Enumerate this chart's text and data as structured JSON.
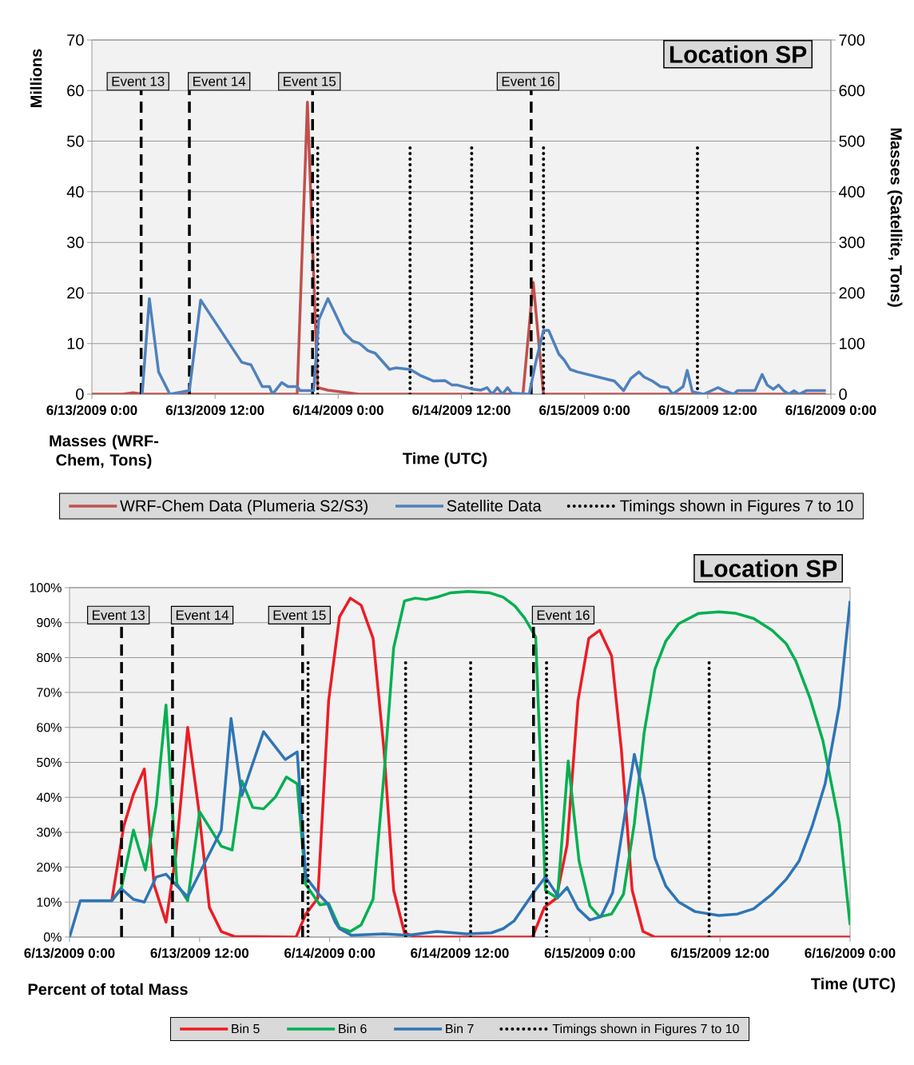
{
  "chart_data": [
    {
      "type": "line",
      "title": "Location SP",
      "xlabel": "Time (UTC)",
      "ylabel": "Masses (WRF-Chem, Tons)",
      "y2label": "Masses (Satellite, Tons)",
      "annotations": [
        "Millions"
      ],
      "xlim": [
        "2009-06-13T00:00",
        "2009-06-16T00:00"
      ],
      "xticks": [
        {
          "value": "2009-06-13T00:00",
          "label": "6/13/2009 0:00"
        },
        {
          "value": "2009-06-13T12:00",
          "label": "6/13/2009 12:00"
        },
        {
          "value": "2009-06-14T00:00",
          "label": "6/14/2009 0:00"
        },
        {
          "value": "2009-06-14T12:00",
          "label": "6/14/2009 12:00"
        },
        {
          "value": "2009-06-15T00:00",
          "label": "6/15/2009 0:00"
        },
        {
          "value": "2009-06-15T12:00",
          "label": "6/15/2009 12:00"
        },
        {
          "value": "2009-06-16T00:00",
          "label": "6/16/2009 0:00"
        }
      ],
      "ylim": [
        0,
        70
      ],
      "yticks": [
        0,
        10,
        20,
        30,
        40,
        50,
        60,
        70
      ],
      "y2lim": [
        0,
        700
      ],
      "y2ticks": [
        0,
        100,
        200,
        300,
        400,
        500,
        600,
        700
      ],
      "grid": "y",
      "legend": "bottom",
      "ref_lines": [
        {
          "axis": "x",
          "value": "2009-06-13T04:48",
          "label": "Event 13",
          "line_style": "dashed"
        },
        {
          "axis": "x",
          "value": "2009-06-13T09:30",
          "label": "Event 14",
          "line_style": "dashed"
        },
        {
          "axis": "x",
          "value": "2009-06-13T21:30",
          "label": "Event 15",
          "line_style": "dashed"
        },
        {
          "axis": "x",
          "value": "2009-06-14T18:48",
          "label": "Event 16",
          "line_style": "dashed"
        }
      ],
      "series": [
        {
          "name": "WRF-Chem Data (Plumeria S2/S3)",
          "color": "#c0504d",
          "x": [
            "2009-06-13T00:00",
            "2009-06-13T03:00",
            "2009-06-13T04:00",
            "2009-06-13T05:00",
            "2009-06-13T20:00",
            "2009-06-13T21:00",
            "2009-06-13T22:00",
            "2009-06-13T23:00",
            "2009-06-14T02:00",
            "2009-06-14T18:00",
            "2009-06-14T19:00",
            "2009-06-14T20:00",
            "2009-06-15T23:30"
          ],
          "values": [
            0,
            0,
            0.3,
            0,
            0,
            57.7,
            1.3,
            0.8,
            0,
            0,
            22.1,
            0,
            0
          ]
        },
        {
          "name": "Satellite Data",
          "color": "#4f81bd",
          "axis": "y2",
          "x": [
            "2009-06-13T04:54",
            "2009-06-13T05:36",
            "2009-06-13T06:30",
            "2009-06-13T07:36",
            "2009-06-13T09:30",
            "2009-06-13T10:36",
            "2009-06-13T14:36",
            "2009-06-13T15:30",
            "2009-06-13T16:36",
            "2009-06-13T17:18",
            "2009-06-13T17:36",
            "2009-06-13T18:30",
            "2009-06-13T19:06",
            "2009-06-13T20:00",
            "2009-06-13T20:18",
            "2009-06-13T21:36",
            "2009-06-13T22:06",
            "2009-06-13T23:00",
            "2009-06-13T23:36",
            "2009-06-14T00:36",
            "2009-06-14T01:24",
            "2009-06-14T02:06",
            "2009-06-14T02:54",
            "2009-06-14T03:36",
            "2009-06-14T05:00",
            "2009-06-14T05:36",
            "2009-06-14T07:00",
            "2009-06-14T08:06",
            "2009-06-14T09:18",
            "2009-06-14T10:24",
            "2009-06-14T11:06",
            "2009-06-14T11:36",
            "2009-06-14T13:06",
            "2009-06-14T13:54",
            "2009-06-14T14:30",
            "2009-06-14T15:00",
            "2009-06-14T15:30",
            "2009-06-14T16:00",
            "2009-06-14T16:30",
            "2009-06-14T16:54",
            "2009-06-14T18:36",
            "2009-06-14T19:18",
            "2009-06-14T20:00",
            "2009-06-14T20:30",
            "2009-06-14T21:30",
            "2009-06-14T22:00",
            "2009-06-14T22:36",
            "2009-06-14T23:18",
            "2009-06-15T02:54",
            "2009-06-15T03:48",
            "2009-06-15T04:30",
            "2009-06-15T05:18",
            "2009-06-15T05:48",
            "2009-06-15T06:36",
            "2009-06-15T07:24",
            "2009-06-15T08:06",
            "2009-06-15T08:36",
            "2009-06-15T09:36",
            "2009-06-15T10:00",
            "2009-06-15T10:30",
            "2009-06-15T11:36",
            "2009-06-15T13:00",
            "2009-06-15T13:36",
            "2009-06-15T14:30",
            "2009-06-15T14:54",
            "2009-06-15T16:36",
            "2009-06-15T17:18",
            "2009-06-15T17:48",
            "2009-06-15T18:24",
            "2009-06-15T18:54",
            "2009-06-15T19:24",
            "2009-06-15T19:54",
            "2009-06-15T20:24",
            "2009-06-15T20:54",
            "2009-06-15T21:36",
            "2009-06-15T23:30"
          ],
          "values": [
            0,
            189,
            44,
            0,
            7,
            186,
            63,
            58,
            15,
            15,
            0,
            23,
            15,
            15,
            7,
            7,
            147,
            189,
            164,
            121,
            105,
            100,
            86,
            81,
            49,
            52,
            49,
            36,
            26,
            27,
            18,
            18,
            10,
            8,
            13,
            0,
            13,
            0,
            13,
            2,
            0,
            68,
            126,
            126,
            79,
            68,
            49,
            44,
            26,
            7,
            31,
            44,
            34,
            26,
            15,
            13,
            0,
            15,
            47,
            5,
            0,
            13,
            7,
            0,
            7,
            7,
            39,
            18,
            10,
            18,
            7,
            0,
            7,
            0,
            7,
            7
          ]
        },
        {
          "name": "Timings shown in Figures 7 to 10",
          "color": "#000000",
          "line_style": "dotted",
          "x": [
            "2009-06-13T22:00",
            "2009-06-13T22:00",
            null,
            "2009-06-14T07:00",
            "2009-06-14T07:00",
            null,
            "2009-06-14T13:00",
            "2009-06-14T13:00",
            null,
            "2009-06-14T20:00",
            "2009-06-14T20:00",
            null,
            "2009-06-15T11:00",
            "2009-06-15T11:00"
          ],
          "values": [
            0,
            49,
            null,
            0,
            49,
            null,
            0,
            49,
            null,
            0,
            49,
            null,
            0,
            49
          ]
        }
      ]
    },
    {
      "type": "line",
      "title": "Location SP",
      "xlabel": "Time (UTC)",
      "ylabel": "Percent of total Mass",
      "xlim": [
        "2009-06-13T00:00",
        "2009-06-16T00:00"
      ],
      "xticks": [
        {
          "value": "2009-06-13T00:00",
          "label": "6/13/2009 0:00"
        },
        {
          "value": "2009-06-13T12:00",
          "label": "6/13/2009 12:00"
        },
        {
          "value": "2009-06-14T00:00",
          "label": "6/14/2009 0:00"
        },
        {
          "value": "2009-06-14T12:00",
          "label": "6/14/2009 12:00"
        },
        {
          "value": "2009-06-15T00:00",
          "label": "6/15/2009 0:00"
        },
        {
          "value": "2009-06-15T12:00",
          "label": "6/15/2009 12:00"
        },
        {
          "value": "2009-06-16T00:00",
          "label": "6/16/2009 0:00"
        }
      ],
      "ylim": [
        0,
        100
      ],
      "yticks": [
        {
          "value": 0,
          "label": "0%"
        },
        {
          "value": 10,
          "label": "10%"
        },
        {
          "value": 20,
          "label": "20%"
        },
        {
          "value": 30,
          "label": "30%"
        },
        {
          "value": 40,
          "label": "40%"
        },
        {
          "value": 50,
          "label": "50%"
        },
        {
          "value": 60,
          "label": "60%"
        },
        {
          "value": 70,
          "label": "70%"
        },
        {
          "value": 80,
          "label": "80%"
        },
        {
          "value": 90,
          "label": "90%"
        },
        {
          "value": 100,
          "label": "100%"
        }
      ],
      "grid": "y",
      "legend": "bottom",
      "ref_lines": [
        {
          "axis": "x",
          "value": "2009-06-13T04:48",
          "label": "Event 13",
          "line_style": "dashed"
        },
        {
          "axis": "x",
          "value": "2009-06-13T09:30",
          "label": "Event 14",
          "line_style": "dashed"
        },
        {
          "axis": "x",
          "value": "2009-06-13T21:30",
          "label": "Event 15",
          "line_style": "dashed"
        },
        {
          "axis": "x",
          "value": "2009-06-14T18:48",
          "label": "Event 16",
          "line_style": "dashed"
        }
      ],
      "series": [
        {
          "name": "Bin 5",
          "color": "#ed1c24",
          "x": [
            "2009-06-13T03:54",
            "2009-06-13T05:00",
            "2009-06-13T05:54",
            "2009-06-13T06:54",
            "2009-06-13T07:48",
            "2009-06-13T08:54",
            "2009-06-13T09:48",
            "2009-06-13T10:54",
            "2009-06-13T11:54",
            "2009-06-13T12:54",
            "2009-06-13T14:00",
            "2009-06-13T15:12",
            "2009-06-13T20:54",
            "2009-06-13T21:48",
            "2009-06-13T22:54",
            "2009-06-13T23:54",
            "2009-06-14T00:54",
            "2009-06-14T01:54",
            "2009-06-14T02:54",
            "2009-06-14T04:00",
            "2009-06-14T05:00",
            "2009-06-14T05:54",
            "2009-06-14T06:54",
            "2009-06-14T07:54",
            "2009-06-14T18:42",
            "2009-06-14T19:48",
            "2009-06-14T20:54",
            "2009-06-14T21:54",
            "2009-06-14T22:54",
            "2009-06-14T23:54",
            "2009-06-15T00:54",
            "2009-06-15T02:00",
            "2009-06-15T02:54",
            "2009-06-15T03:54",
            "2009-06-15T04:54",
            "2009-06-15T06:00",
            "2009-06-16T00:00"
          ],
          "values": [
            10.4,
            31.7,
            40.9,
            48.1,
            15,
            4.3,
            23.3,
            60,
            37,
            8.5,
            1.6,
            0.2,
            0,
            6.6,
            11.1,
            67.6,
            91.6,
            97,
            95,
            85.5,
            53.8,
            13.4,
            1.2,
            0,
            0,
            8.5,
            11.1,
            26.4,
            67.6,
            85.5,
            87.8,
            80.5,
            53.8,
            13.4,
            1.6,
            0,
            0
          ]
        },
        {
          "name": "Bin 6",
          "color": "#00b050",
          "x": [
            "2009-06-13T03:54",
            "2009-06-13T04:48",
            "2009-06-13T05:54",
            "2009-06-13T07:00",
            "2009-06-13T08:00",
            "2009-06-13T08:54",
            "2009-06-13T09:54",
            "2009-06-13T10:54",
            "2009-06-13T12:00",
            "2009-06-13T14:00",
            "2009-06-13T15:00",
            "2009-06-13T15:54",
            "2009-06-13T16:54",
            "2009-06-13T17:54",
            "2009-06-13T19:00",
            "2009-06-13T20:00",
            "2009-06-13T21:00",
            "2009-06-13T21:48",
            "2009-06-13T23:06",
            "2009-06-13T23:54",
            "2009-06-14T00:54",
            "2009-06-14T01:54",
            "2009-06-14T02:54",
            "2009-06-14T04:00",
            "2009-06-14T05:00",
            "2009-06-14T05:54",
            "2009-06-14T06:54",
            "2009-06-14T07:54",
            "2009-06-14T08:54",
            "2009-06-14T09:54",
            "2009-06-14T11:06",
            "2009-06-14T12:48",
            "2009-06-14T14:48",
            "2009-06-14T16:00",
            "2009-06-14T17:06",
            "2009-06-14T18:00",
            "2009-06-14T19:00",
            "2009-06-14T19:54",
            "2009-06-14T21:00",
            "2009-06-14T22:00",
            "2009-06-14T23:00",
            "2009-06-15T00:00",
            "2009-06-15T00:54",
            "2009-06-15T02:00",
            "2009-06-15T03:06",
            "2009-06-15T04:06",
            "2009-06-15T05:00",
            "2009-06-15T06:00",
            "2009-06-15T07:00",
            "2009-06-15T08:12",
            "2009-06-15T10:00",
            "2009-06-15T11:54",
            "2009-06-15T13:24",
            "2009-06-15T15:06",
            "2009-06-15T16:48",
            "2009-06-15T18:06",
            "2009-06-15T19:00",
            "2009-06-15T20:18",
            "2009-06-15T21:30",
            "2009-06-15T23:00",
            "2009-06-16T00:00"
          ],
          "values": [
            10.4,
            14.2,
            30.6,
            19.2,
            37.8,
            66.4,
            15.3,
            10.4,
            35.9,
            26,
            24.9,
            44.7,
            37.1,
            36.7,
            40.1,
            45.8,
            43.9,
            15,
            9.2,
            9.6,
            2.7,
            1.6,
            3.5,
            10.8,
            46.2,
            82.8,
            96.2,
            97,
            96.6,
            97.3,
            98.5,
            98.9,
            98.5,
            97.3,
            94.7,
            91.2,
            85.9,
            13.4,
            11.1,
            50.4,
            21.8,
            8.9,
            5.8,
            6.6,
            12.3,
            32.5,
            58.4,
            76.7,
            84.7,
            89.7,
            92.6,
            93.1,
            92.7,
            91.2,
            87.8,
            84,
            79,
            68.4,
            56.1,
            32.5,
            3.5
          ]
        },
        {
          "name": "Bin 7",
          "color": "#2e75b6",
          "x": [
            "2009-06-13T00:00",
            "2009-06-13T01:00",
            "2009-06-13T03:54",
            "2009-06-13T04:48",
            "2009-06-13T05:54",
            "2009-06-13T06:54",
            "2009-06-13T08:00",
            "2009-06-13T08:54",
            "2009-06-13T09:48",
            "2009-06-13T10:54",
            "2009-06-13T14:00",
            "2009-06-13T14:54",
            "2009-06-13T15:54",
            "2009-06-13T17:54",
            "2009-06-13T19:54",
            "2009-06-13T21:00",
            "2009-06-13T21:48",
            "2009-06-13T23:06",
            "2009-06-13T23:48",
            "2009-06-14T00:30",
            "2009-06-14T00:54",
            "2009-06-14T02:00",
            "2009-06-14T05:00",
            "2009-06-14T07:12",
            "2009-06-14T09:54",
            "2009-06-14T12:36",
            "2009-06-14T14:54",
            "2009-06-14T16:00",
            "2009-06-14T17:00",
            "2009-06-14T18:48",
            "2009-06-14T19:54",
            "2009-06-14T21:06",
            "2009-06-14T21:54",
            "2009-06-14T22:54",
            "2009-06-15T00:00",
            "2009-06-15T01:00",
            "2009-06-15T02:06",
            "2009-06-15T04:06",
            "2009-06-15T05:00",
            "2009-06-15T06:00",
            "2009-06-15T07:00",
            "2009-06-15T08:12",
            "2009-06-15T09:42",
            "2009-06-15T11:54",
            "2009-06-15T13:36",
            "2009-06-15T15:06",
            "2009-06-15T16:48",
            "2009-06-15T18:06",
            "2009-06-15T19:18",
            "2009-06-15T20:30",
            "2009-06-15T21:42",
            "2009-06-15T23:00",
            "2009-06-16T00:00"
          ],
          "values": [
            0,
            10.4,
            10.4,
            13.8,
            10.8,
            10,
            17.2,
            18,
            15,
            11.5,
            30.6,
            62.6,
            40.5,
            58.8,
            50.8,
            53,
            17.2,
            11.9,
            9.6,
            4.3,
            2.4,
            0.5,
            0.9,
            0.5,
            1.6,
            0.9,
            1.2,
            2.4,
            4.6,
            12.7,
            17.2,
            11.5,
            14.2,
            8.1,
            4.9,
            5.8,
            12.7,
            52.3,
            40.1,
            22.6,
            14.6,
            10,
            7.3,
            6.2,
            6.6,
            8.1,
            12.3,
            16.5,
            21.8,
            31.7,
            43.9,
            66.1,
            96.2
          ]
        },
        {
          "name": "Timings shown in Figures 7 to 10",
          "color": "#000000",
          "line_style": "dotted",
          "x": [
            "2009-06-13T22:00",
            "2009-06-13T22:00",
            null,
            "2009-06-14T07:00",
            "2009-06-14T07:00",
            null,
            "2009-06-14T13:00",
            "2009-06-14T13:00",
            null,
            "2009-06-14T20:00",
            "2009-06-14T20:00",
            null,
            "2009-06-15T11:00",
            "2009-06-15T11:00"
          ],
          "values": [
            0,
            79,
            null,
            0,
            79,
            null,
            0,
            79,
            null,
            0,
            79,
            null,
            0,
            79
          ]
        }
      ]
    }
  ]
}
